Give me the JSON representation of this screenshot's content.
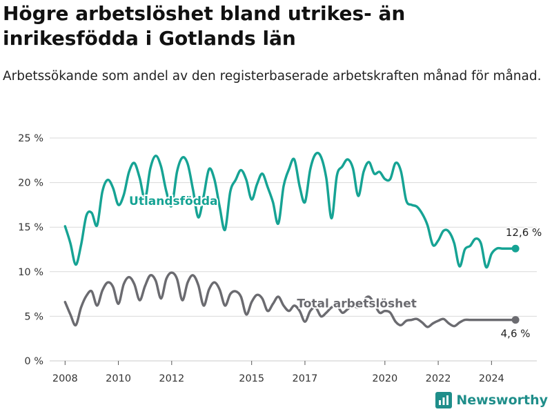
{
  "title": "Högre arbetslöshet bland utrikes- än inrikesfödda i Gotlands län",
  "subtitle": "Arbetssökande som andel av den registerbaserade arbetskraften månad för månad.",
  "brand": "Newsworthy",
  "colors": {
    "foreign_born": "#16a394",
    "total": "#6b6b70",
    "grid": "#d9d9d9",
    "brand": "#1f8e8a"
  },
  "chart_data": {
    "type": "line",
    "title": "Högre arbetslöshet bland utrikes- än inrikesfödda i Gotlands län",
    "ylabel": "",
    "xlabel": "",
    "xlim": [
      2007.5,
      2025.7
    ],
    "ylim": [
      0,
      25
    ],
    "y_ticks": [
      0,
      5,
      10,
      15,
      20,
      25
    ],
    "y_tick_labels": [
      "0 %",
      "5 %",
      "10 %",
      "15 %",
      "20 %",
      "25 %"
    ],
    "x_ticks": [
      2008,
      2010,
      2012,
      2015,
      2017,
      2020,
      2022,
      2024
    ],
    "x_tick_labels": [
      "2008",
      "2010",
      "2012",
      "2015",
      "2017",
      "2020",
      "2022",
      "2024"
    ],
    "grid": "horizontal",
    "series": [
      {
        "name": "Utlandsfödda",
        "end_label": "12,6 %",
        "x": [
          2008.0,
          2008.2,
          2008.4,
          2008.6,
          2008.8,
          2009.0,
          2009.2,
          2009.4,
          2009.6,
          2009.8,
          2010.0,
          2010.2,
          2010.4,
          2010.6,
          2010.8,
          2011.0,
          2011.2,
          2011.4,
          2011.6,
          2011.8,
          2012.0,
          2012.2,
          2012.4,
          2012.6,
          2012.8,
          2013.0,
          2013.2,
          2013.4,
          2013.6,
          2013.8,
          2014.0,
          2014.2,
          2014.4,
          2014.6,
          2014.8,
          2015.0,
          2015.2,
          2015.4,
          2015.6,
          2015.8,
          2016.0,
          2016.2,
          2016.4,
          2016.6,
          2016.8,
          2017.0,
          2017.2,
          2017.4,
          2017.6,
          2017.8,
          2018.0,
          2018.2,
          2018.4,
          2018.6,
          2018.8,
          2019.0,
          2019.2,
          2019.4,
          2019.6,
          2019.8,
          2020.0,
          2020.2,
          2020.4,
          2020.6,
          2020.8,
          2021.0,
          2021.2,
          2021.4,
          2021.6,
          2021.8,
          2022.0,
          2022.2,
          2022.4,
          2022.6,
          2022.8,
          2023.0,
          2023.2,
          2023.4,
          2023.6,
          2023.8,
          2024.0,
          2024.2,
          2024.4,
          2024.6,
          2024.9
        ],
        "values": [
          15.1,
          13.2,
          10.8,
          13.0,
          16.3,
          16.6,
          15.2,
          19.0,
          20.3,
          19.4,
          17.5,
          18.6,
          21.2,
          22.2,
          20.5,
          18.2,
          21.6,
          23.0,
          21.8,
          19.0,
          17.4,
          21.2,
          22.8,
          22.1,
          19.2,
          16.1,
          18.5,
          21.5,
          20.4,
          17.3,
          14.7,
          19.0,
          20.3,
          21.4,
          20.3,
          18.1,
          19.8,
          21.0,
          19.5,
          17.8,
          15.4,
          19.6,
          21.5,
          22.6,
          19.6,
          17.8,
          21.5,
          23.2,
          22.9,
          20.5,
          16.0,
          20.8,
          21.8,
          22.6,
          21.6,
          18.5,
          21.2,
          22.3,
          21.0,
          21.2,
          20.4,
          20.4,
          22.2,
          21.3,
          18.0,
          17.5,
          17.3,
          16.5,
          15.2,
          13.0,
          13.5,
          14.6,
          14.5,
          13.2,
          10.6,
          12.5,
          12.9,
          13.7,
          13.2,
          10.5,
          12.0,
          12.6,
          12.6,
          12.6,
          12.6
        ]
      },
      {
        "name": "Total arbetslöshet",
        "end_label": "4,6 %",
        "x": [
          2008.0,
          2008.2,
          2008.4,
          2008.6,
          2008.8,
          2009.0,
          2009.2,
          2009.4,
          2009.6,
          2009.8,
          2010.0,
          2010.2,
          2010.4,
          2010.6,
          2010.8,
          2011.0,
          2011.2,
          2011.4,
          2011.6,
          2011.8,
          2012.0,
          2012.2,
          2012.4,
          2012.6,
          2012.8,
          2013.0,
          2013.2,
          2013.4,
          2013.6,
          2013.8,
          2014.0,
          2014.2,
          2014.4,
          2014.6,
          2014.8,
          2015.0,
          2015.2,
          2015.4,
          2015.6,
          2015.8,
          2016.0,
          2016.2,
          2016.4,
          2016.6,
          2016.8,
          2017.0,
          2017.2,
          2017.4,
          2017.6,
          2017.8,
          2018.0,
          2018.2,
          2018.4,
          2018.6,
          2018.8,
          2019.0,
          2019.2,
          2019.4,
          2019.6,
          2019.8,
          2020.0,
          2020.2,
          2020.4,
          2020.6,
          2020.8,
          2021.0,
          2021.2,
          2021.4,
          2021.6,
          2021.8,
          2022.0,
          2022.2,
          2022.4,
          2022.6,
          2022.8,
          2023.0,
          2023.2,
          2023.4,
          2023.6,
          2023.8,
          2024.0,
          2024.2,
          2024.4,
          2024.6,
          2024.9
        ],
        "values": [
          6.6,
          5.2,
          4.0,
          6.0,
          7.3,
          7.8,
          6.2,
          7.9,
          8.8,
          8.3,
          6.4,
          8.6,
          9.4,
          8.6,
          6.8,
          8.4,
          9.6,
          9.0,
          7.0,
          9.2,
          9.9,
          9.2,
          6.8,
          8.8,
          9.6,
          8.5,
          6.2,
          8.0,
          8.8,
          8.0,
          6.2,
          7.5,
          7.8,
          7.2,
          5.2,
          6.6,
          7.4,
          7.0,
          5.6,
          6.4,
          7.2,
          6.2,
          5.6,
          6.2,
          5.6,
          4.4,
          5.6,
          6.0,
          5.0,
          5.4,
          6.0,
          6.2,
          5.4,
          5.8,
          6.2,
          6.0,
          6.8,
          7.2,
          6.4,
          5.4,
          5.6,
          5.4,
          4.4,
          4.0,
          4.5,
          4.6,
          4.7,
          4.3,
          3.8,
          4.2,
          4.5,
          4.7,
          4.2,
          3.9,
          4.3,
          4.6,
          4.6,
          4.6,
          4.6,
          4.6,
          4.6,
          4.6,
          4.6,
          4.6,
          4.6
        ]
      }
    ],
    "legend": "inline"
  }
}
